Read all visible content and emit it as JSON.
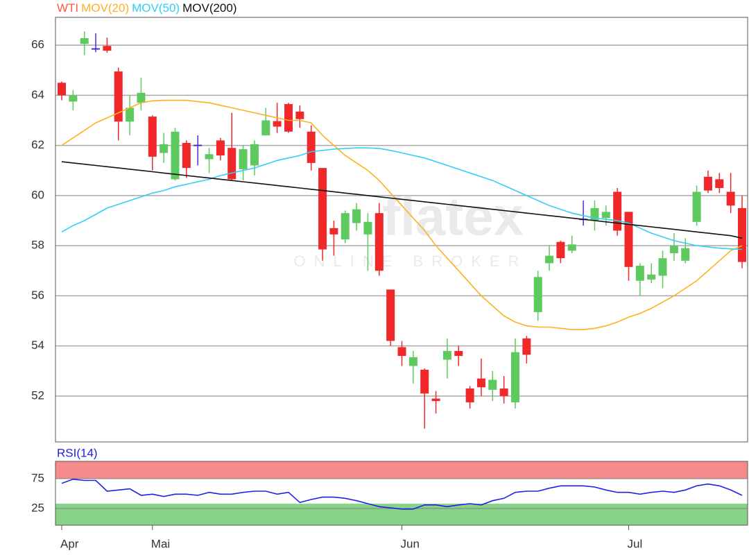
{
  "chart_data": [
    {
      "type": "candlestick",
      "name": "WTI",
      "name_color": "#ff5a3a",
      "watermark": "flatex",
      "watermark_sub": "ONLINE BROKER",
      "categories": [
        "Apr",
        null,
        null,
        null,
        null,
        null,
        null,
        null,
        "Mai",
        null,
        null,
        null,
        null,
        null,
        null,
        null,
        null,
        null,
        null,
        null,
        null,
        null,
        null,
        null,
        null,
        null,
        null,
        null,
        null,
        null,
        "Jun",
        null,
        null,
        null,
        null,
        null,
        null,
        null,
        null,
        null,
        null,
        null,
        null,
        null,
        null,
        null,
        null,
        null,
        null,
        null,
        "Jul",
        null,
        null,
        null,
        null,
        null,
        null,
        null,
        null,
        null,
        null
      ],
      "open": [
        64.5,
        63.75,
        66.05,
        65.85,
        65.97,
        64.95,
        62.95,
        63.7,
        63.15,
        61.7,
        60.65,
        62.1,
        62.0,
        61.45,
        62.2,
        61.9,
        61.05,
        61.2,
        62.4,
        62.97,
        63.65,
        63.35,
        62.55,
        61.1,
        58.7,
        58.25,
        58.9,
        58.45,
        59.3,
        56.25,
        53.95,
        53.2,
        53.05,
        51.9,
        53.45,
        53.8,
        52.3,
        52.7,
        52.25,
        52.3,
        51.75,
        54.3,
        55.35,
        57.3,
        58.15,
        57.8,
        59.05,
        59.0,
        59.1,
        60.15,
        59.35,
        56.6,
        56.65,
        56.8,
        57.7,
        57.4,
        58.95,
        60.75,
        60.65,
        60.15,
        59.5
      ],
      "high": [
        64.55,
        64.2,
        66.55,
        66.47,
        66.3,
        65.1,
        64.0,
        64.7,
        63.2,
        62.5,
        62.7,
        62.2,
        62.4,
        61.9,
        62.3,
        63.3,
        62.0,
        62.2,
        63.5,
        63.7,
        63.7,
        63.6,
        62.8,
        61.1,
        59.0,
        59.4,
        59.7,
        59.3,
        59.7,
        56.25,
        54.2,
        53.8,
        53.1,
        52.2,
        54.3,
        54.0,
        52.4,
        53.5,
        53.0,
        52.8,
        54.3,
        54.4,
        57.0,
        58.0,
        58.2,
        58.4,
        59.8,
        59.8,
        59.6,
        60.3,
        59.35,
        57.3,
        57.3,
        57.8,
        58.5,
        58.3,
        60.4,
        61.0,
        60.9,
        60.9,
        60.0
      ],
      "low": [
        63.8,
        63.4,
        65.6,
        65.72,
        65.7,
        62.2,
        62.4,
        63.4,
        61.0,
        61.3,
        60.6,
        60.7,
        61.2,
        60.9,
        61.4,
        60.6,
        60.6,
        60.8,
        62.4,
        62.5,
        62.5,
        62.7,
        61.0,
        57.4,
        57.6,
        58.1,
        58.6,
        57.0,
        56.8,
        54.0,
        53.2,
        52.5,
        50.7,
        51.3,
        52.7,
        53.2,
        51.5,
        52.0,
        51.8,
        51.7,
        51.5,
        53.3,
        55.0,
        57.0,
        57.3,
        57.7,
        58.8,
        58.6,
        58.8,
        58.4,
        56.6,
        56.0,
        56.5,
        56.3,
        57.4,
        57.3,
        58.8,
        60.1,
        60.1,
        59.3,
        57.1
      ],
      "close": [
        64.0,
        64.0,
        66.28,
        65.85,
        65.78,
        62.95,
        63.5,
        64.1,
        61.55,
        62.05,
        62.55,
        61.1,
        62.0,
        61.65,
        61.6,
        60.65,
        61.85,
        62.05,
        63.0,
        62.75,
        62.55,
        63.05,
        61.3,
        57.85,
        58.45,
        59.3,
        59.45,
        58.95,
        57.0,
        54.2,
        53.6,
        53.55,
        52.1,
        51.8,
        53.8,
        53.6,
        51.75,
        52.35,
        52.65,
        52.0,
        53.75,
        53.65,
        56.75,
        57.6,
        57.5,
        58.05,
        59.05,
        59.5,
        59.35,
        58.6,
        57.15,
        57.2,
        56.85,
        57.5,
        58.0,
        57.9,
        60.15,
        60.2,
        60.3,
        59.6,
        57.35
      ],
      "colors": {
        "up": "#5ec95e",
        "down": "#f0282a",
        "doji": "#4b2bd0"
      },
      "series": [
        {
          "name": "MOV(20)",
          "color": "#ffb020",
          "values": [
            62.0,
            62.3,
            62.6,
            62.9,
            63.1,
            63.3,
            63.5,
            63.7,
            63.78,
            63.8,
            63.8,
            63.8,
            63.75,
            63.7,
            63.6,
            63.5,
            63.4,
            63.3,
            63.2,
            63.1,
            63.0,
            63.0,
            62.9,
            62.4,
            62.0,
            61.6,
            61.3,
            61.0,
            60.6,
            60.1,
            59.6,
            59.1,
            58.6,
            58.0,
            57.5,
            57.0,
            56.5,
            56.0,
            55.6,
            55.2,
            54.95,
            54.8,
            54.75,
            54.75,
            54.7,
            54.65,
            54.65,
            54.7,
            54.8,
            54.95,
            55.15,
            55.3,
            55.5,
            55.75,
            56.0,
            56.3,
            56.6,
            57.0,
            57.4,
            57.8,
            58.0
          ]
        },
        {
          "name": "MOV(50)",
          "color": "#30cff5",
          "values": [
            58.55,
            58.8,
            59.0,
            59.25,
            59.5,
            59.65,
            59.8,
            59.95,
            60.1,
            60.2,
            60.35,
            60.45,
            60.55,
            60.65,
            60.8,
            60.9,
            61.0,
            61.1,
            61.25,
            61.4,
            61.5,
            61.6,
            61.75,
            61.8,
            61.85,
            61.88,
            61.9,
            61.9,
            61.88,
            61.8,
            61.7,
            61.6,
            61.5,
            61.35,
            61.2,
            61.05,
            60.9,
            60.75,
            60.6,
            60.4,
            60.2,
            60.0,
            59.8,
            59.6,
            59.45,
            59.3,
            59.2,
            59.1,
            59.05,
            59.0,
            58.9,
            58.7,
            58.5,
            58.35,
            58.2,
            58.1,
            58.0,
            57.95,
            57.9,
            57.87,
            57.85
          ]
        },
        {
          "name": "MOV(200)",
          "color": "#111111",
          "values": [
            61.35,
            61.3,
            61.25,
            61.2,
            61.15,
            61.1,
            61.05,
            61.0,
            60.95,
            60.9,
            60.85,
            60.8,
            60.75,
            60.7,
            60.65,
            60.6,
            60.55,
            60.5,
            60.45,
            60.4,
            60.35,
            60.3,
            60.25,
            60.2,
            60.15,
            60.1,
            60.05,
            60.0,
            59.95,
            59.9,
            59.85,
            59.8,
            59.75,
            59.7,
            59.65,
            59.6,
            59.55,
            59.5,
            59.45,
            59.4,
            59.35,
            59.3,
            59.25,
            59.2,
            59.15,
            59.1,
            59.05,
            59.0,
            58.95,
            58.9,
            58.85,
            58.8,
            58.75,
            58.7,
            58.65,
            58.6,
            58.55,
            58.5,
            58.45,
            58.4,
            58.3
          ]
        }
      ],
      "ylim": [
        50.17,
        67.11
      ],
      "yticks": [
        52,
        54,
        56,
        58,
        60,
        62,
        64,
        66
      ],
      "grid": true
    },
    {
      "type": "line",
      "series": [
        {
          "name": "RSI(14)",
          "color": "#2020e8",
          "values": [
            67,
            74,
            72,
            72,
            54,
            56,
            58,
            47,
            49,
            45,
            49,
            49,
            47,
            52,
            49,
            49,
            52,
            54,
            54,
            49,
            52,
            35,
            40,
            44,
            44,
            42,
            38,
            33,
            28,
            26,
            24,
            24,
            31,
            31,
            28,
            31,
            33,
            31,
            38,
            42,
            52,
            54,
            54,
            59,
            63,
            63,
            63,
            61,
            56,
            52,
            52,
            49,
            52,
            54,
            52,
            56,
            63,
            66,
            63,
            56,
            47
          ]
        }
      ],
      "bands": [
        {
          "from": 75,
          "to": 104,
          "color": "#f58a8a"
        },
        {
          "from": -3,
          "to": 33,
          "color": "#86d286"
        }
      ],
      "ylim": [
        -3,
        104
      ],
      "yticks": [
        25,
        75
      ],
      "grid": true
    }
  ]
}
